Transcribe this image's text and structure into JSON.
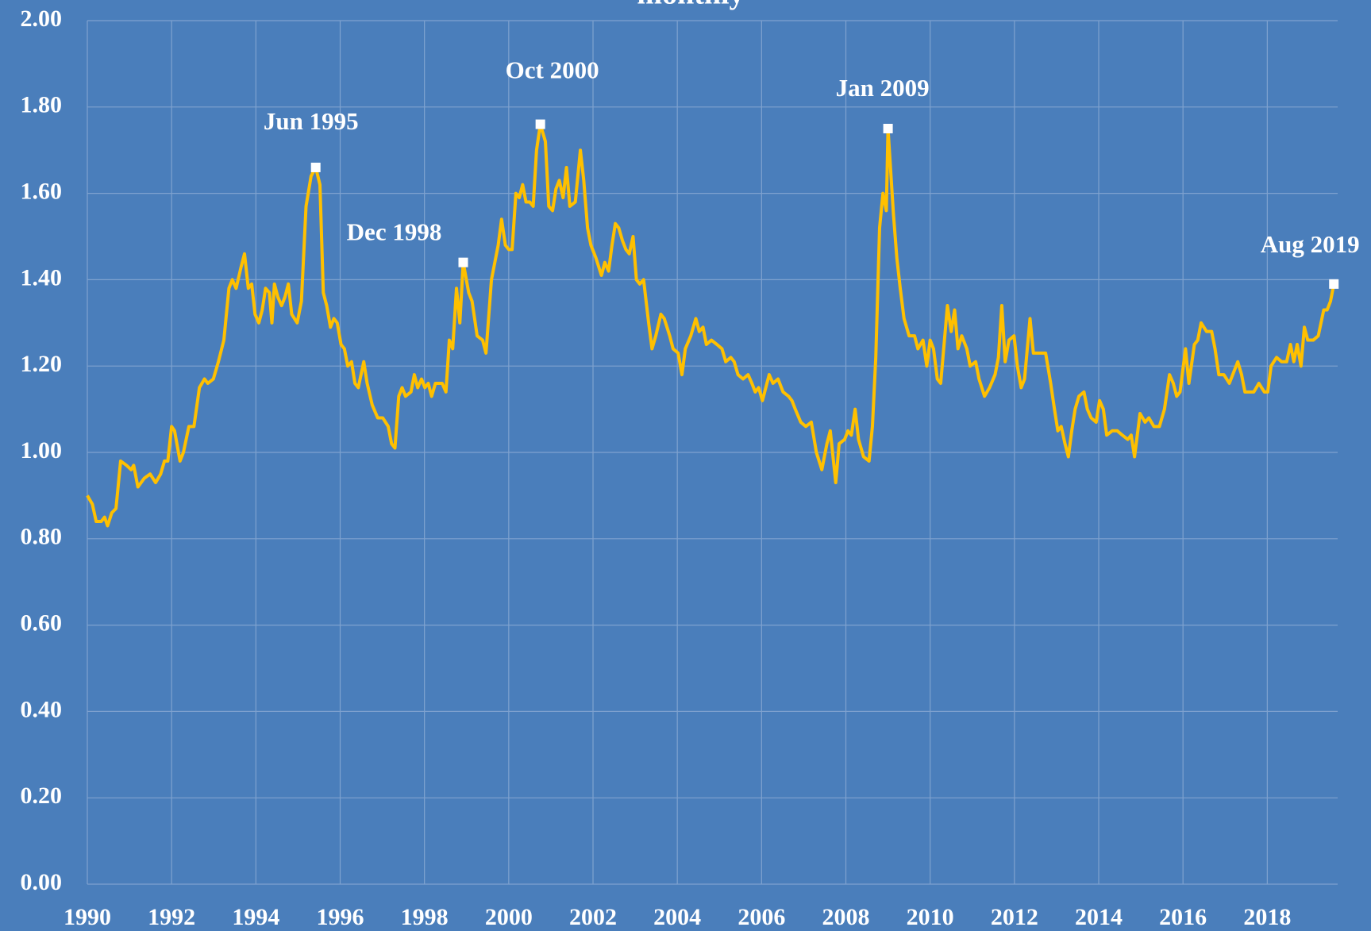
{
  "chart_data": {
    "type": "line",
    "title": "monthly",
    "x": [
      1990.0,
      1990.12,
      1990.21,
      1990.33,
      1990.41,
      1990.48,
      1990.58,
      1990.68,
      1990.79,
      1990.93,
      1991.04,
      1991.1,
      1991.2,
      1991.35,
      1991.49,
      1991.62,
      1991.74,
      1991.83,
      1991.91,
      1992.0,
      1992.07,
      1992.2,
      1992.28,
      1992.41,
      1992.53,
      1992.66,
      1992.78,
      1992.86,
      1992.99,
      1993.11,
      1993.24,
      1993.36,
      1993.44,
      1993.53,
      1993.65,
      1993.73,
      1993.82,
      1993.9,
      1993.98,
      1994.07,
      1994.15,
      1994.23,
      1994.32,
      1994.38,
      1994.44,
      1994.52,
      1994.61,
      1994.69,
      1994.77,
      1994.85,
      1994.98,
      1995.08,
      1995.19,
      1995.31,
      1995.42,
      1995.52,
      1995.6,
      1995.68,
      1995.77,
      1995.85,
      1995.93,
      1996.02,
      1996.1,
      1996.18,
      1996.27,
      1996.35,
      1996.43,
      1996.56,
      1996.64,
      1996.76,
      1996.89,
      1997.01,
      1997.14,
      1997.22,
      1997.3,
      1997.39,
      1997.47,
      1997.55,
      1997.68,
      1997.76,
      1997.84,
      1997.93,
      1998.01,
      1998.09,
      1998.17,
      1998.26,
      1998.42,
      1998.51,
      1998.59,
      1998.67,
      1998.76,
      1998.84,
      1998.92,
      1999.05,
      1999.13,
      1999.25,
      1999.38,
      1999.46,
      1999.59,
      1999.67,
      1999.75,
      1999.83,
      1999.92,
      2000.0,
      2000.08,
      2000.17,
      2000.25,
      2000.33,
      2000.41,
      2000.5,
      2000.58,
      2000.66,
      2000.75,
      2000.87,
      2000.95,
      2001.04,
      2001.12,
      2001.2,
      2001.29,
      2001.37,
      2001.45,
      2001.58,
      2001.7,
      2001.78,
      2001.87,
      2001.95,
      2002.07,
      2002.2,
      2002.28,
      2002.37,
      2002.45,
      2002.53,
      2002.61,
      2002.7,
      2002.78,
      2002.86,
      2002.95,
      2003.03,
      2003.11,
      2003.2,
      2003.32,
      2003.4,
      2003.49,
      2003.61,
      2003.69,
      2003.82,
      2003.9,
      2004.02,
      2004.11,
      2004.19,
      2004.32,
      2004.44,
      2004.52,
      2004.61,
      2004.69,
      2004.81,
      2004.94,
      2005.06,
      2005.15,
      2005.27,
      2005.35,
      2005.44,
      2005.56,
      2005.68,
      2005.77,
      2005.85,
      2005.93,
      2006.02,
      2006.1,
      2006.18,
      2006.27,
      2006.39,
      2006.51,
      2006.64,
      2006.72,
      2006.8,
      2006.93,
      2007.05,
      2007.18,
      2007.3,
      2007.43,
      2007.55,
      2007.63,
      2007.76,
      2007.84,
      2007.97,
      2008.05,
      2008.13,
      2008.22,
      2008.3,
      2008.42,
      2008.55,
      2008.63,
      2008.71,
      2008.8,
      2008.88,
      2008.96,
      2009.0,
      2009.13,
      2009.21,
      2009.29,
      2009.38,
      2009.5,
      2009.63,
      2009.71,
      2009.83,
      2009.92,
      2010.0,
      2010.08,
      2010.17,
      2010.25,
      2010.33,
      2010.41,
      2010.5,
      2010.58,
      2010.66,
      2010.75,
      2010.87,
      2010.95,
      2011.08,
      2011.16,
      2011.29,
      2011.41,
      2011.54,
      2011.62,
      2011.7,
      2011.78,
      2011.87,
      2011.99,
      2012.07,
      2012.16,
      2012.24,
      2012.37,
      2012.45,
      2012.57,
      2012.74,
      2012.86,
      2012.95,
      2013.03,
      2013.11,
      2013.2,
      2013.28,
      2013.36,
      2013.44,
      2013.53,
      2013.65,
      2013.73,
      2013.82,
      2013.94,
      2014.02,
      2014.11,
      2014.19,
      2014.32,
      2014.44,
      2014.56,
      2014.69,
      2014.77,
      2014.85,
      2014.98,
      2015.1,
      2015.19,
      2015.31,
      2015.44,
      2015.56,
      2015.68,
      2015.77,
      2015.85,
      2015.93,
      2016.06,
      2016.14,
      2016.27,
      2016.35,
      2016.43,
      2016.56,
      2016.68,
      2016.76,
      2016.85,
      2016.97,
      2017.1,
      2017.22,
      2017.3,
      2017.39,
      2017.47,
      2017.55,
      2017.68,
      2017.8,
      2017.93,
      2018.01,
      2018.09,
      2018.22,
      2018.34,
      2018.46,
      2018.55,
      2018.63,
      2018.71,
      2018.8,
      2018.88,
      2018.96,
      2019.09,
      2019.21,
      2019.34,
      2019.42,
      2019.5,
      2019.58
    ],
    "series": [
      {
        "color": "#ffc000",
        "values": [
          0.9,
          0.88,
          0.84,
          0.84,
          0.85,
          0.83,
          0.86,
          0.87,
          0.98,
          0.97,
          0.96,
          0.97,
          0.92,
          0.94,
          0.95,
          0.93,
          0.95,
          0.98,
          0.98,
          1.06,
          1.05,
          0.98,
          1.0,
          1.06,
          1.06,
          1.15,
          1.17,
          1.16,
          1.17,
          1.21,
          1.26,
          1.38,
          1.4,
          1.38,
          1.43,
          1.46,
          1.38,
          1.39,
          1.32,
          1.3,
          1.33,
          1.38,
          1.37,
          1.3,
          1.39,
          1.36,
          1.34,
          1.36,
          1.39,
          1.32,
          1.3,
          1.35,
          1.57,
          1.64,
          1.66,
          1.62,
          1.37,
          1.34,
          1.29,
          1.31,
          1.3,
          1.25,
          1.24,
          1.2,
          1.21,
          1.16,
          1.15,
          1.21,
          1.16,
          1.11,
          1.08,
          1.08,
          1.06,
          1.02,
          1.01,
          1.13,
          1.15,
          1.13,
          1.14,
          1.18,
          1.15,
          1.17,
          1.15,
          1.16,
          1.13,
          1.16,
          1.16,
          1.14,
          1.26,
          1.24,
          1.38,
          1.3,
          1.44,
          1.37,
          1.35,
          1.27,
          1.26,
          1.23,
          1.4,
          1.44,
          1.48,
          1.54,
          1.48,
          1.47,
          1.47,
          1.6,
          1.59,
          1.62,
          1.58,
          1.58,
          1.57,
          1.7,
          1.76,
          1.72,
          1.57,
          1.56,
          1.61,
          1.63,
          1.59,
          1.66,
          1.57,
          1.58,
          1.7,
          1.63,
          1.52,
          1.48,
          1.45,
          1.41,
          1.44,
          1.42,
          1.48,
          1.53,
          1.52,
          1.49,
          1.47,
          1.46,
          1.5,
          1.4,
          1.39,
          1.4,
          1.3,
          1.24,
          1.27,
          1.32,
          1.31,
          1.27,
          1.24,
          1.23,
          1.18,
          1.24,
          1.27,
          1.31,
          1.28,
          1.29,
          1.25,
          1.26,
          1.25,
          1.24,
          1.21,
          1.22,
          1.21,
          1.18,
          1.17,
          1.18,
          1.16,
          1.14,
          1.15,
          1.12,
          1.15,
          1.18,
          1.16,
          1.17,
          1.14,
          1.13,
          1.12,
          1.1,
          1.07,
          1.06,
          1.07,
          1.0,
          0.96,
          1.02,
          1.05,
          0.93,
          1.02,
          1.03,
          1.05,
          1.04,
          1.1,
          1.03,
          0.99,
          0.98,
          1.06,
          1.22,
          1.52,
          1.6,
          1.56,
          1.75,
          1.55,
          1.45,
          1.38,
          1.31,
          1.27,
          1.27,
          1.24,
          1.26,
          1.2,
          1.26,
          1.24,
          1.17,
          1.16,
          1.25,
          1.34,
          1.28,
          1.33,
          1.24,
          1.27,
          1.24,
          1.2,
          1.21,
          1.17,
          1.13,
          1.15,
          1.18,
          1.22,
          1.34,
          1.21,
          1.26,
          1.27,
          1.2,
          1.15,
          1.17,
          1.31,
          1.23,
          1.23,
          1.23,
          1.16,
          1.1,
          1.05,
          1.06,
          1.02,
          0.99,
          1.05,
          1.1,
          1.13,
          1.14,
          1.1,
          1.08,
          1.07,
          1.12,
          1.1,
          1.04,
          1.05,
          1.05,
          1.04,
          1.03,
          1.04,
          0.99,
          1.09,
          1.07,
          1.08,
          1.06,
          1.06,
          1.1,
          1.18,
          1.16,
          1.13,
          1.14,
          1.24,
          1.16,
          1.25,
          1.26,
          1.3,
          1.28,
          1.28,
          1.24,
          1.18,
          1.18,
          1.16,
          1.19,
          1.21,
          1.18,
          1.14,
          1.14,
          1.14,
          1.16,
          1.14,
          1.14,
          1.2,
          1.22,
          1.21,
          1.21,
          1.25,
          1.21,
          1.25,
          1.2,
          1.29,
          1.26,
          1.26,
          1.27,
          1.33,
          1.33,
          1.35,
          1.39
        ]
      }
    ],
    "annotations": [
      {
        "label": "Jun 1995",
        "x": 1995.42,
        "y": 1.66
      },
      {
        "label": "Dec 1998",
        "x": 1998.92,
        "y": 1.44
      },
      {
        "label": "Oct 2000",
        "x": 2000.75,
        "y": 1.76
      },
      {
        "label": "Jan 2009",
        "x": 2009.0,
        "y": 1.75
      },
      {
        "label": "Aug 2019",
        "x": 2019.58,
        "y": 1.39
      }
    ],
    "xlim": [
      1990,
      2019.67
    ],
    "xticks": [
      1990,
      1992,
      1994,
      1996,
      1998,
      2000,
      2002,
      2004,
      2006,
      2008,
      2010,
      2012,
      2014,
      2016,
      2018
    ],
    "ylim": [
      0,
      2
    ],
    "yticks": [
      {
        "value": 0,
        "label": "0.00"
      },
      {
        "value": 0.2,
        "label": "0.20"
      },
      {
        "value": 0.4,
        "label": "0.40"
      },
      {
        "value": 0.6,
        "label": "0.60"
      },
      {
        "value": 0.8,
        "label": "0.80"
      },
      {
        "value": 1,
        "label": "1.00"
      },
      {
        "value": 1.2,
        "label": "1.20"
      },
      {
        "value": 1.4,
        "label": "1.40"
      },
      {
        "value": 1.6,
        "label": "1.60"
      },
      {
        "value": 1.8,
        "label": "1.80"
      },
      {
        "value": 2,
        "label": "2.00"
      }
    ],
    "grid": true
  }
}
